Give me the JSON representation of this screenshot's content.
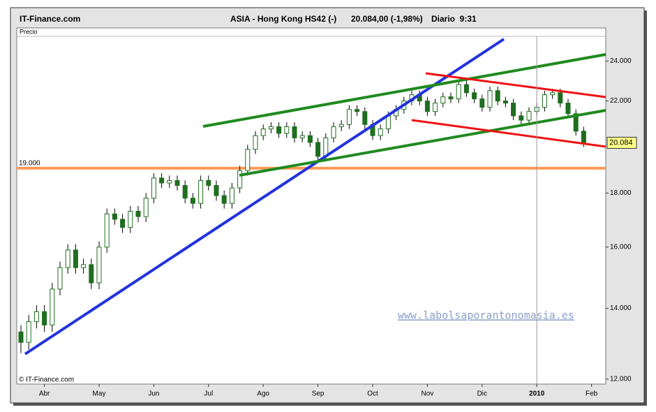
{
  "chart_data": {
    "type": "candlestick",
    "source": "IT-Finance.com",
    "title": "ASIA - Hong Kong HS42 (-)",
    "quote": "20.084,00 (-1,98%)",
    "period": "Diario  9:31",
    "panel_label": "Precio",
    "copyright": "© IT-Finance.com",
    "watermark": "www.labolsaporantonomasia.es",
    "categories": [
      null,
      null,
      null,
      "Abr",
      null,
      null,
      null,
      null,
      null,
      null,
      "May",
      null,
      null,
      null,
      null,
      null,
      null,
      "Jun",
      null,
      null,
      null,
      null,
      null,
      null,
      "Jul",
      null,
      null,
      null,
      null,
      null,
      null,
      "Ago",
      null,
      null,
      null,
      null,
      null,
      null,
      "Sep",
      null,
      null,
      null,
      null,
      null,
      null,
      "Oct",
      null,
      null,
      null,
      null,
      null,
      null,
      "Nov",
      null,
      null,
      null,
      null,
      null,
      null,
      "Dic",
      null,
      null,
      null,
      null,
      null,
      null,
      "2010",
      null,
      null,
      null,
      null,
      null,
      null,
      "Feb"
    ],
    "open": [
      13300,
      13000,
      13600,
      13900,
      13500,
      14600,
      15300,
      15900,
      15300,
      15400,
      14800,
      16000,
      17200,
      17000,
      16700,
      17300,
      17100,
      17800,
      18600,
      18400,
      18500,
      18300,
      17800,
      17600,
      18500,
      18300,
      17900,
      17600,
      18200,
      18900,
      19800,
      20400,
      20700,
      20800,
      20500,
      20800,
      20300,
      20400,
      20100,
      19500,
      20300,
      20800,
      20900,
      21600,
      21500,
      20900,
      20400,
      20700,
      21300,
      21600,
      22000,
      22300,
      22000,
      21500,
      21900,
      22200,
      22100,
      22800,
      22400,
      22100,
      21700,
      22500,
      22000,
      21900,
      21300,
      21100,
      21500,
      21700,
      22300,
      22400,
      21900,
      21400,
      20600,
      null
    ],
    "high": [
      13500,
      13800,
      14100,
      14100,
      14800,
      15500,
      16100,
      16100,
      15600,
      15600,
      16200,
      17400,
      17400,
      17200,
      17500,
      17500,
      18000,
      18800,
      18800,
      18700,
      18700,
      18500,
      18000,
      18700,
      18700,
      18500,
      18100,
      18400,
      19100,
      20000,
      20600,
      20900,
      21000,
      21000,
      21000,
      21000,
      20600,
      20600,
      20300,
      20500,
      21000,
      21100,
      21800,
      21800,
      21700,
      21100,
      20900,
      21500,
      21800,
      22200,
      22500,
      22500,
      22200,
      22100,
      22400,
      22400,
      23000,
      23000,
      22600,
      22300,
      22700,
      22700,
      22200,
      22100,
      21500,
      21700,
      21900,
      22500,
      22600,
      22600,
      22100,
      21600,
      20800,
      null
    ],
    "low": [
      12700,
      12800,
      13400,
      13300,
      13300,
      14400,
      15100,
      15100,
      15100,
      14600,
      14600,
      15800,
      16800,
      16500,
      16500,
      16900,
      16900,
      17600,
      18200,
      18200,
      18100,
      17600,
      17400,
      17400,
      18100,
      17700,
      17400,
      17400,
      18000,
      18700,
      19600,
      20200,
      20500,
      20300,
      20300,
      20100,
      20100,
      19900,
      19300,
      19300,
      20100,
      20600,
      20700,
      21300,
      20700,
      20200,
      20200,
      20500,
      21100,
      21400,
      21800,
      21800,
      21300,
      21300,
      21700,
      21900,
      21900,
      22200,
      21900,
      21500,
      21500,
      21800,
      21700,
      21100,
      20900,
      20900,
      21300,
      21500,
      22100,
      21700,
      21200,
      20400,
      19900,
      null
    ],
    "close": [
      13000,
      13600,
      13900,
      13500,
      14600,
      15300,
      15900,
      15300,
      15400,
      14800,
      16000,
      17200,
      17000,
      16700,
      17300,
      17100,
      17800,
      18600,
      18400,
      18500,
      18300,
      17800,
      17600,
      18500,
      18300,
      17900,
      17600,
      18200,
      18900,
      19800,
      20400,
      20700,
      20800,
      20500,
      20800,
      20300,
      20400,
      20100,
      19500,
      20300,
      20800,
      20900,
      21600,
      21500,
      20900,
      20400,
      20700,
      21300,
      21600,
      22000,
      22300,
      22000,
      21500,
      21900,
      22200,
      22100,
      22800,
      22400,
      22100,
      21700,
      22500,
      22000,
      21900,
      21300,
      21100,
      21500,
      21700,
      22300,
      22400,
      21900,
      21400,
      20600,
      20084,
      null
    ],
    "color": "#1f6e1f",
    "last_price": {
      "value": 20084,
      "label": "20.084"
    },
    "hline": {
      "value": 19000,
      "label": "19.000",
      "color": "#ff9a55"
    },
    "log_scale": true,
    "ylim": [
      11870,
      25330
    ],
    "yticks": [
      {
        "value": 12000,
        "label": "12.000"
      },
      {
        "value": 14000,
        "label": "14.000"
      },
      {
        "value": 16000,
        "label": "16.000"
      },
      {
        "value": 18000,
        "label": "18.000"
      },
      {
        "value": 22000,
        "label": "22.000"
      },
      {
        "value": 24000,
        "label": "24.000"
      }
    ]
  }
}
